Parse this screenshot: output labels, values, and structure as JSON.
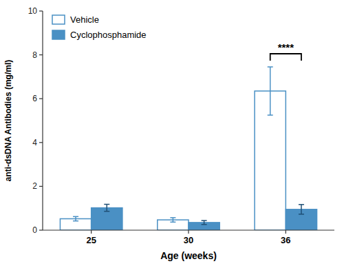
{
  "chart_data": {
    "type": "bar",
    "xlabel": "Age (weeks)",
    "ylabel": "anti-dsDNA Antibodies (mg/ml)",
    "categories": [
      "25",
      "30",
      "36"
    ],
    "series": [
      {
        "name": "Vehicle",
        "color": "#ffffff",
        "values": [
          0.52,
          0.47,
          6.35
        ],
        "errors": [
          0.1,
          0.1,
          1.1
        ]
      },
      {
        "name": "Cyclophosphamide",
        "color": "#4A90C4",
        "values": [
          1.02,
          0.35,
          0.95
        ],
        "errors": [
          0.16,
          0.09,
          0.22
        ]
      }
    ],
    "ylim": [
      0,
      10
    ],
    "yticks": [
      0,
      2,
      4,
      6,
      8,
      10
    ],
    "grid": false,
    "legend": "upper left",
    "annotations": [
      {
        "text": "****",
        "category": "36",
        "y": 8.05
      }
    ]
  }
}
